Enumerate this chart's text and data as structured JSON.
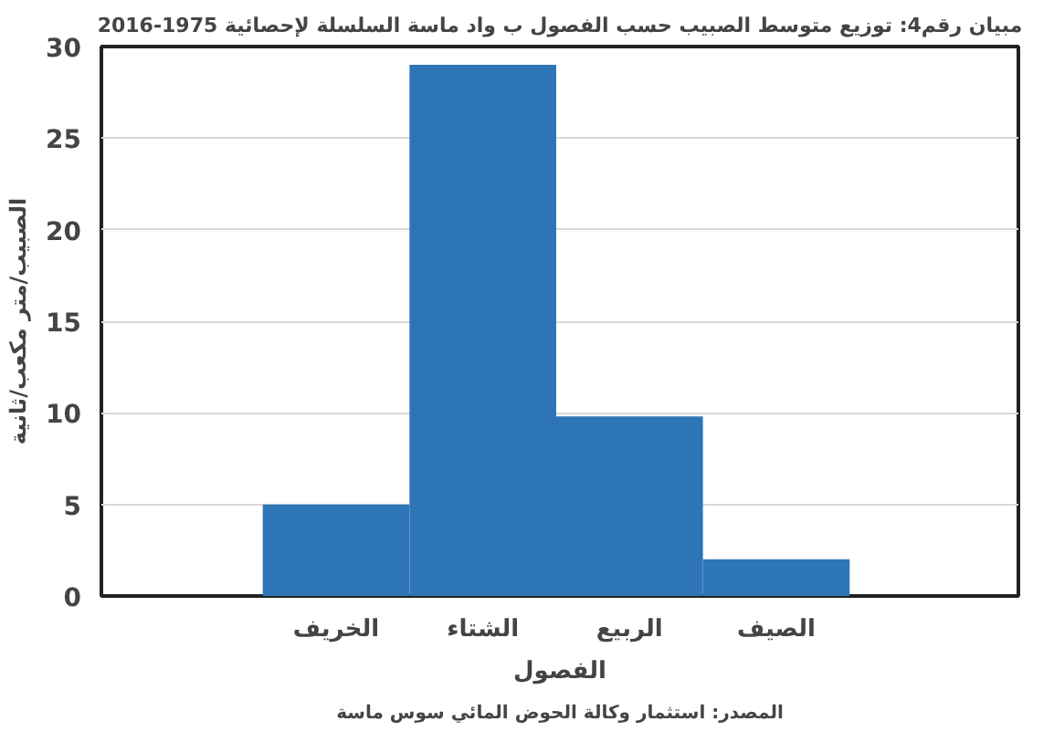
{
  "chart_data": {
    "type": "bar",
    "title": "مبيان رقم4: توزيع متوسط الصبيب حسب الفصول ب واد ماسة السلسلة لإحصائية 1975-2016",
    "categories": [
      "الخريف",
      "الشتاء",
      "الربيع",
      "الصيف"
    ],
    "values": [
      5,
      29,
      9.8,
      2
    ],
    "color": "#2e75b6",
    "xlabel": "الفصول",
    "ylabel": "الصبيب/متر مكعب/ثانية",
    "ylim": [
      0,
      30
    ],
    "yticks": [
      0,
      5,
      10,
      15,
      20,
      25,
      30
    ],
    "grid": "y",
    "annotations": [
      "المصدر: استثمار وكالة الحوض المائي سوس ماسة"
    ]
  }
}
